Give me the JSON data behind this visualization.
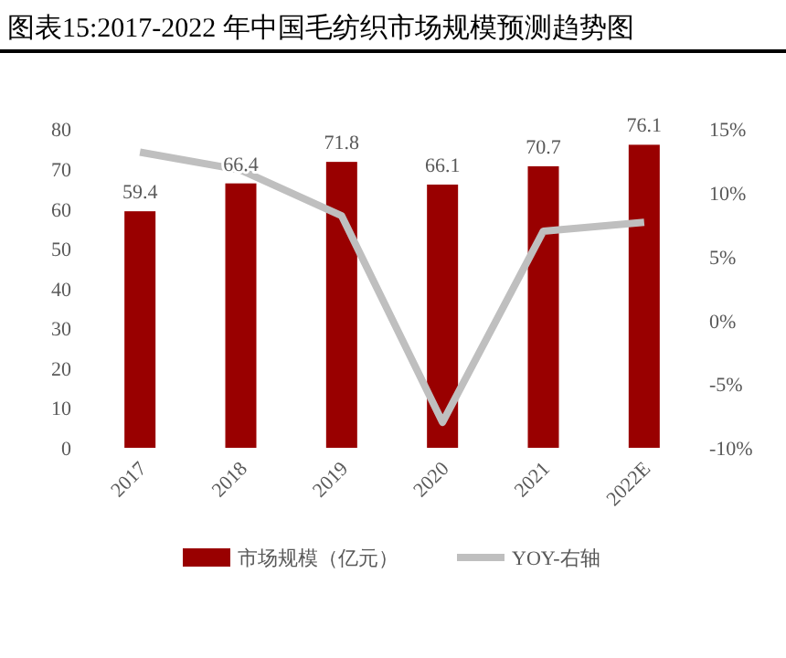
{
  "chart_data": {
    "type": "bar",
    "title": "图表15:2017-2022 年中国毛纺织市场规模预测趋势图",
    "categories": [
      "2017",
      "2018",
      "2019",
      "2020",
      "2021",
      "2022E"
    ],
    "series": [
      {
        "name": "市场规模（亿元）",
        "color": "#990000",
        "values": [
          59.4,
          66.4,
          71.8,
          66.1,
          70.7,
          76.1
        ],
        "value_labels": [
          "59.4",
          "66.4",
          "71.8",
          "66.1",
          "70.7",
          "76.1"
        ]
      },
      {
        "name": "YOY-右轴",
        "type": "line",
        "axis": "y2",
        "color": "#bfbfbf",
        "values": [
          13.2,
          11.8,
          8.2,
          -8.0,
          7.0,
          7.7
        ]
      }
    ],
    "ylim": [
      0,
      80
    ],
    "yticks": [
      0,
      10,
      20,
      30,
      40,
      50,
      60,
      70,
      80
    ],
    "y2lim": [
      -10,
      15
    ],
    "y2ticks": [
      {
        "value": -10,
        "label": "-10%"
      },
      {
        "value": -5,
        "label": "-5%"
      },
      {
        "value": 0,
        "label": "0%"
      },
      {
        "value": 5,
        "label": "5%"
      },
      {
        "value": 10,
        "label": "10%"
      },
      {
        "value": 15,
        "label": "15%"
      }
    ],
    "legend": "bottom"
  }
}
